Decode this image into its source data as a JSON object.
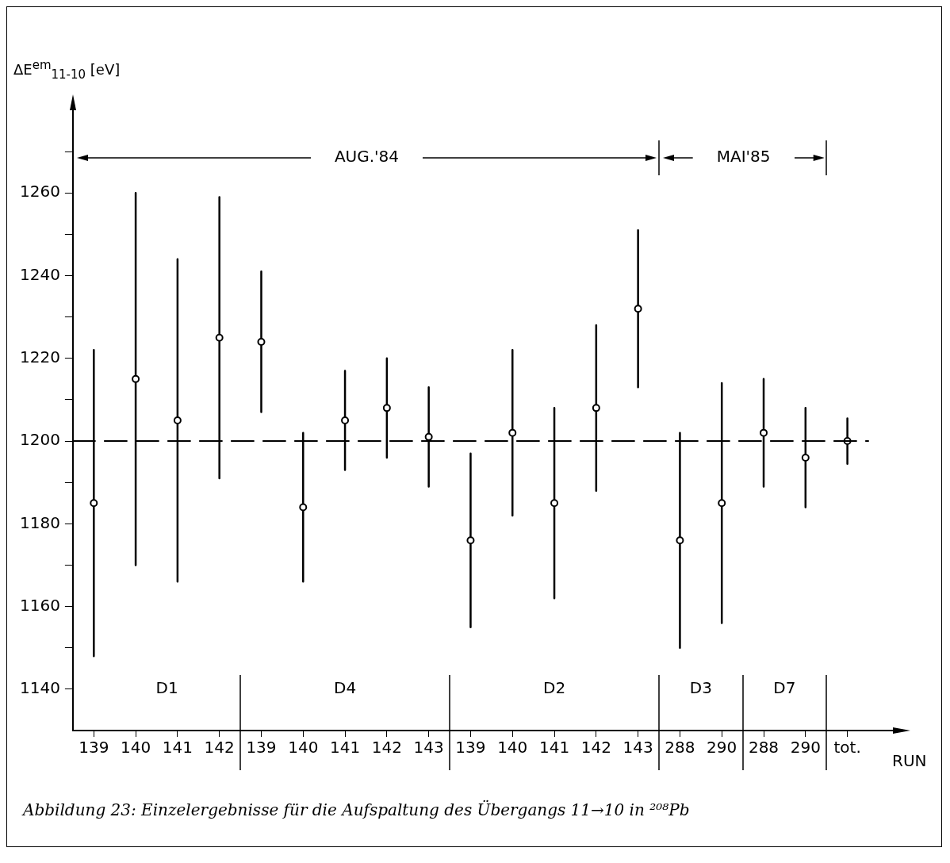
{
  "chart_data": {
    "type": "scatter",
    "ylabel": "ΔE$^{em}$$_{11-10}$ [eV]",
    "xlabel": "RUN",
    "categories": [
      "139",
      "140",
      "141",
      "142",
      "139",
      "140",
      "141",
      "142",
      "143",
      "139",
      "140",
      "141",
      "142",
      "143",
      "288",
      "290",
      "288",
      "290",
      "tot."
    ],
    "series": [
      {
        "color": "#000000",
        "values": [
          1185,
          1215,
          1205,
          1225,
          1224,
          1184,
          1205,
          1208,
          1201,
          1176,
          1202,
          1185,
          1208,
          1232,
          1176,
          1185,
          1202,
          1196,
          1200
        ],
        "errors": [
          37,
          45,
          39,
          34,
          17,
          18,
          12,
          12,
          12,
          21,
          20,
          23,
          20,
          19,
          26,
          29,
          13,
          12,
          5.5
        ]
      }
    ],
    "ylim": [
      1130,
      1280
    ],
    "yticks": [
      1140,
      {
        "value": 1150,
        "label": null
      },
      1160,
      {
        "value": 1170,
        "label": null
      },
      1180,
      {
        "value": 1190,
        "label": null
      },
      1200,
      {
        "value": 1210,
        "label": null
      },
      1220,
      {
        "value": 1230,
        "label": null
      },
      1240,
      {
        "value": 1250,
        "label": null
      },
      1260,
      {
        "value": 1270,
        "label": null
      }
    ],
    "ref_lines": [
      {
        "axis": "y",
        "value": 1200,
        "line_style": "dashed"
      }
    ],
    "marker": "circle",
    "grid": false,
    "legend": false,
    "annotations": [
      "AUG.'84",
      "MAI'85",
      "D1",
      "D4",
      "D2",
      "D3",
      "D7",
      "Abbildung 23: Einzelergebnisse für die Aufspaltung des Übergangs 11→10 in ²⁰⁸Pb"
    ]
  }
}
